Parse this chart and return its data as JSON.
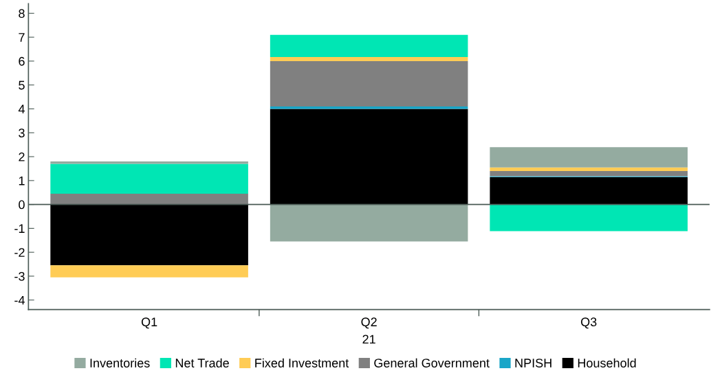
{
  "chart_data": {
    "type": "bar",
    "stacked": true,
    "xlabel": "21",
    "categories": [
      "Q1",
      "Q2",
      "Q3"
    ],
    "series": [
      {
        "name": "Household",
        "color": "#000000",
        "values": [
          -2.55,
          4.0,
          1.15
        ]
      },
      {
        "name": "NPISH",
        "color": "#1aa6c8",
        "values": [
          0,
          0.1,
          0.03
        ]
      },
      {
        "name": "General Government",
        "color": "#808080",
        "values": [
          0.45,
          1.9,
          0.22
        ]
      },
      {
        "name": "Fixed Investment",
        "color": "#ffcc55",
        "values": [
          -0.5,
          0.17,
          0.15
        ]
      },
      {
        "name": "Net Trade",
        "color": "#00e6b4",
        "values": [
          1.25,
          0.93,
          -1.12
        ]
      },
      {
        "name": "Inventories",
        "color": "#94aba0",
        "values": [
          0.1,
          -1.55,
          0.85
        ]
      }
    ],
    "ylim": [
      -4.4,
      8.4
    ],
    "yticks": [
      -4,
      -3,
      -2,
      -1,
      0,
      1,
      2,
      3,
      4,
      5,
      6,
      7,
      8
    ],
    "ref_lines": [
      {
        "axis": "y",
        "value": 0,
        "color": "#4a5a55"
      }
    ],
    "grid": false,
    "legend": "bottom"
  }
}
